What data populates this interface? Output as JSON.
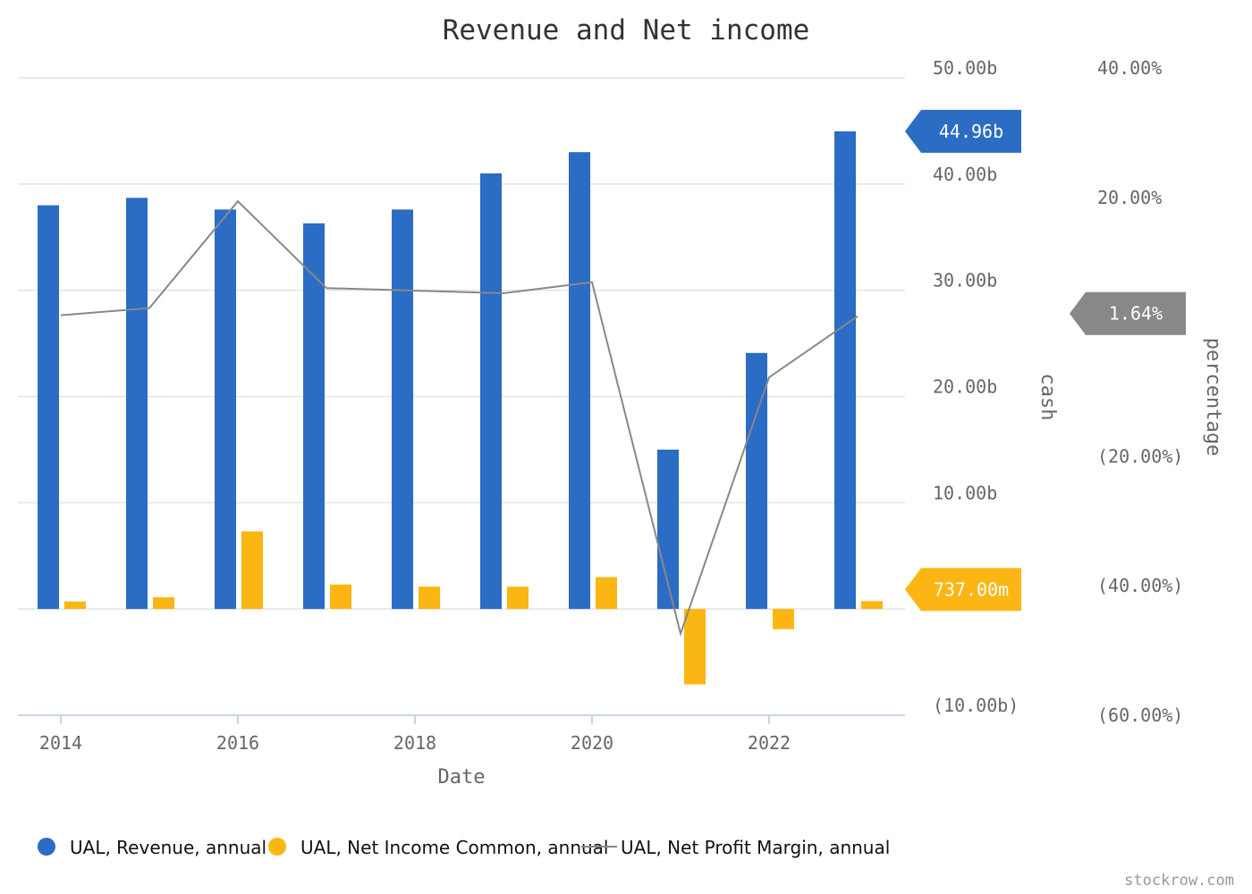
{
  "chart_data": {
    "type": "bar",
    "title": "Revenue and Net income",
    "xlabel": "Date",
    "ylabel_left": "cash",
    "ylabel_right": "percentage",
    "x_ticks": [
      "2014",
      "2016",
      "2018",
      "2020",
      "2022"
    ],
    "y_ticks_cash": [
      "50.00b",
      "40.00b",
      "30.00b",
      "20.00b",
      "10.00b",
      "(10.00b)"
    ],
    "y_ticks_percentage": [
      "40.00%",
      "20.00%",
      "(20.00%)",
      "(40.00%)",
      "(60.00%)"
    ],
    "ylim_cash": [
      -10,
      50
    ],
    "ylim_percentage": [
      -60,
      40
    ],
    "grid": true,
    "legend_position": "bottom-left",
    "categories": [
      "2014",
      "2015",
      "2016",
      "2017",
      "2018",
      "2019",
      "2020",
      "2021",
      "2022",
      "2023"
    ],
    "series": [
      {
        "name": "UAL, Revenue, annual",
        "type": "bar",
        "axis": "cash",
        "unit": "billions",
        "color": "#2b6cc4",
        "values": [
          38.0,
          38.7,
          37.6,
          36.3,
          37.6,
          41.0,
          43.0,
          15.0,
          24.1,
          44.96
        ]
      },
      {
        "name": "UAL, Net Income Common, annual",
        "type": "bar",
        "axis": "cash",
        "unit": "billions",
        "color": "#fbb614",
        "values": [
          0.7,
          1.1,
          7.3,
          2.3,
          2.1,
          2.1,
          3.0,
          -7.1,
          -1.9,
          0.737
        ]
      },
      {
        "name": "UAL, Net Profit Margin, annual",
        "type": "line",
        "axis": "percentage",
        "unit": "percent",
        "color": "#888888",
        "values": [
          1.8,
          2.9,
          19.4,
          6.0,
          5.6,
          5.2,
          6.9,
          -47.4,
          -7.8,
          1.64
        ]
      }
    ],
    "latest_flags": [
      {
        "label": "44.96b",
        "color": "#2b6cc4"
      },
      {
        "label": "737.00m",
        "color": "#fbb614"
      },
      {
        "label": "1.64%",
        "color": "#888888"
      }
    ]
  },
  "credit": "stockrow.com"
}
